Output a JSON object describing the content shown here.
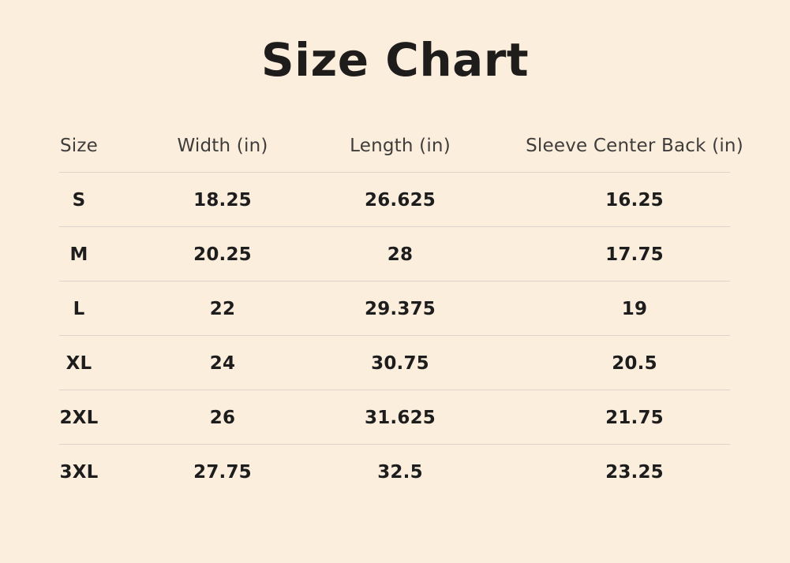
{
  "page": {
    "title": "Size Chart"
  },
  "colors": {
    "background": "#fceedd",
    "divider": "#dcd4ca",
    "title_text": "#1f1d1b",
    "header_text": "#3f3d3b",
    "cell_text": "#1d1d1d"
  },
  "chart_data": {
    "type": "table",
    "title": "Size Chart",
    "columns": [
      "Size",
      "Width (in)",
      "Length (in)",
      "Sleeve Center Back (in)"
    ],
    "rows": [
      [
        "S",
        "18.25",
        "26.625",
        "16.25"
      ],
      [
        "M",
        "20.25",
        "28",
        "17.75"
      ],
      [
        "L",
        "22",
        "29.375",
        "19"
      ],
      [
        "XL",
        "24",
        "30.75",
        "20.5"
      ],
      [
        "2XL",
        "26",
        "31.625",
        "21.75"
      ],
      [
        "3XL",
        "27.75",
        "32.5",
        "23.25"
      ]
    ]
  }
}
